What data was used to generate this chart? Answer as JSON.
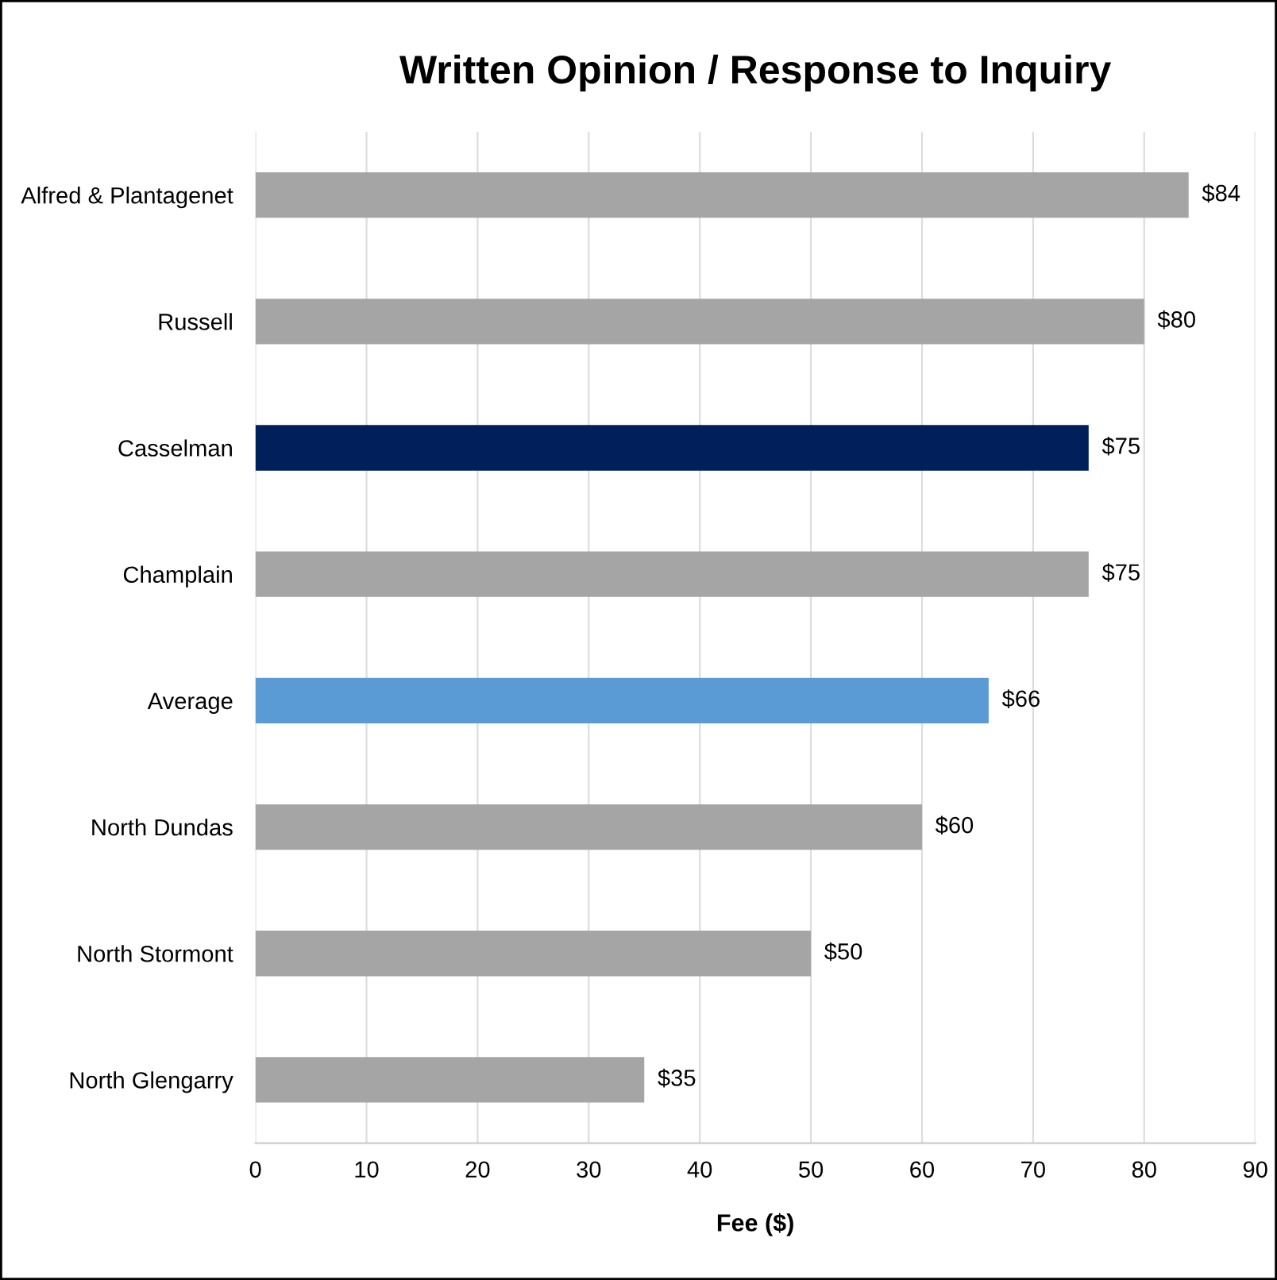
{
  "chart_data": {
    "type": "bar",
    "orientation": "horizontal",
    "title": "Written Opinion / Response to Inquiry",
    "xlabel": "Fee ($)",
    "categories": [
      "Alfred & Plantagenet",
      "Russell",
      "Casselman",
      "Champlain",
      "Average",
      "North Dundas",
      "North Stormont",
      "North Glengarry"
    ],
    "values": [
      84,
      80,
      75,
      75,
      66,
      60,
      50,
      35
    ],
    "colors": [
      "#a5a5a5",
      "#a5a5a5",
      "#001f5b",
      "#a5a5a5",
      "#5b9bd5",
      "#a5a5a5",
      "#a5a5a5",
      "#a5a5a5"
    ],
    "value_labels": [
      "$84",
      "$80",
      "$75",
      "$75",
      "$66",
      "$60",
      "$50",
      "$35"
    ],
    "xlim": [
      0,
      90
    ],
    "xticks": [
      0,
      10,
      20,
      30,
      40,
      50,
      60,
      70,
      80,
      90
    ],
    "grid": "x"
  }
}
